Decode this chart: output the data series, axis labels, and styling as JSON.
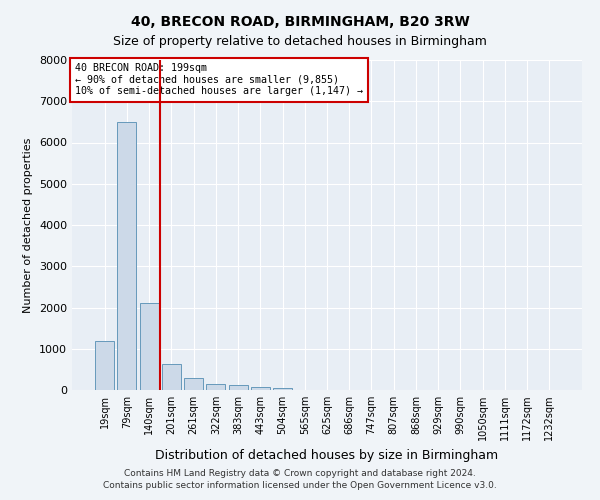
{
  "title1": "40, BRECON ROAD, BIRMINGHAM, B20 3RW",
  "title2": "Size of property relative to detached houses in Birmingham",
  "xlabel": "Distribution of detached houses by size in Birmingham",
  "ylabel": "Number of detached properties",
  "categories": [
    "19sqm",
    "79sqm",
    "140sqm",
    "201sqm",
    "261sqm",
    "322sqm",
    "383sqm",
    "443sqm",
    "504sqm",
    "565sqm",
    "625sqm",
    "686sqm",
    "747sqm",
    "807sqm",
    "868sqm",
    "929sqm",
    "990sqm",
    "1050sqm",
    "1111sqm",
    "1172sqm",
    "1232sqm"
  ],
  "values": [
    1200,
    6500,
    2100,
    630,
    280,
    140,
    110,
    70,
    50,
    10,
    5,
    0,
    0,
    0,
    0,
    0,
    0,
    0,
    0,
    0,
    0
  ],
  "bar_color": "#ccd9e8",
  "bar_edge_color": "#6699bb",
  "vline_x": 2.5,
  "vline_color": "#cc0000",
  "annotation_box_color": "#cc0000",
  "annotation_lines": [
    "40 BRECON ROAD: 199sqm",
    "← 90% of detached houses are smaller (9,855)",
    "10% of semi-detached houses are larger (1,147) →"
  ],
  "ylim": [
    0,
    8000
  ],
  "yticks": [
    0,
    1000,
    2000,
    3000,
    4000,
    5000,
    6000,
    7000,
    8000
  ],
  "footer1": "Contains HM Land Registry data © Crown copyright and database right 2024.",
  "footer2": "Contains public sector information licensed under the Open Government Licence v3.0.",
  "background_color": "#f0f4f8",
  "plot_bg_color": "#e8eef5",
  "title1_fontsize": 10,
  "title2_fontsize": 9,
  "ylabel_fontsize": 8,
  "xlabel_fontsize": 9,
  "tick_fontsize": 7,
  "footer_fontsize": 6.5
}
